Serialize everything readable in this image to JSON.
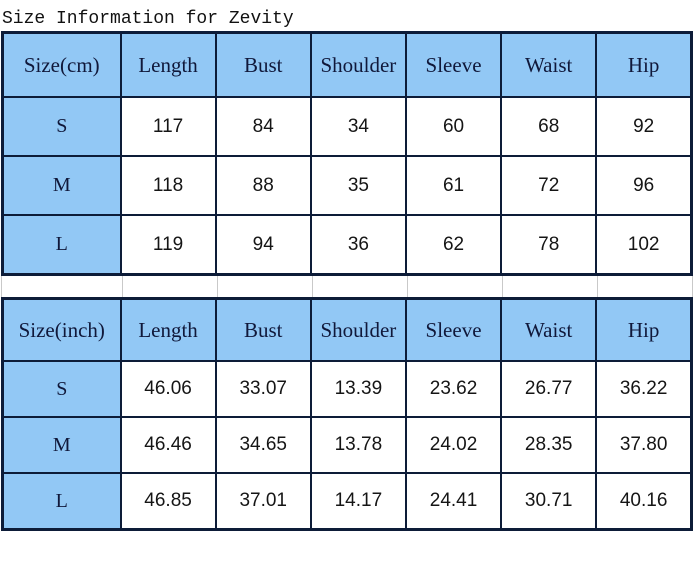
{
  "title": "Size Information for Zevity",
  "colors": {
    "header_bg": "#92C8F5",
    "table_border": "#0D1C38",
    "gap_gridline": "#C9C9C9",
    "header_text": "#10183A",
    "number_text": "#151515"
  },
  "tables": [
    {
      "unit": "Size(cm)",
      "columns": [
        "Length",
        "Bust",
        "Shoulder",
        "Sleeve",
        "Waist",
        "Hip"
      ],
      "rows": [
        {
          "size": "S",
          "values": [
            "117",
            "84",
            "34",
            "60",
            "68",
            "92"
          ]
        },
        {
          "size": "M",
          "values": [
            "118",
            "88",
            "35",
            "61",
            "72",
            "96"
          ]
        },
        {
          "size": "L",
          "values": [
            "119",
            "94",
            "36",
            "62",
            "78",
            "102"
          ]
        }
      ]
    },
    {
      "unit": "Size(inch)",
      "columns": [
        "Length",
        "Bust",
        "Shoulder",
        "Sleeve",
        "Waist",
        "Hip"
      ],
      "rows": [
        {
          "size": "S",
          "values": [
            "46.06",
            "33.07",
            "13.39",
            "23.62",
            "26.77",
            "36.22"
          ]
        },
        {
          "size": "M",
          "values": [
            "46.46",
            "34.65",
            "13.78",
            "24.02",
            "28.35",
            "37.80"
          ]
        },
        {
          "size": "L",
          "values": [
            "46.85",
            "37.01",
            "14.17",
            "24.41",
            "30.71",
            "40.16"
          ]
        }
      ]
    }
  ]
}
